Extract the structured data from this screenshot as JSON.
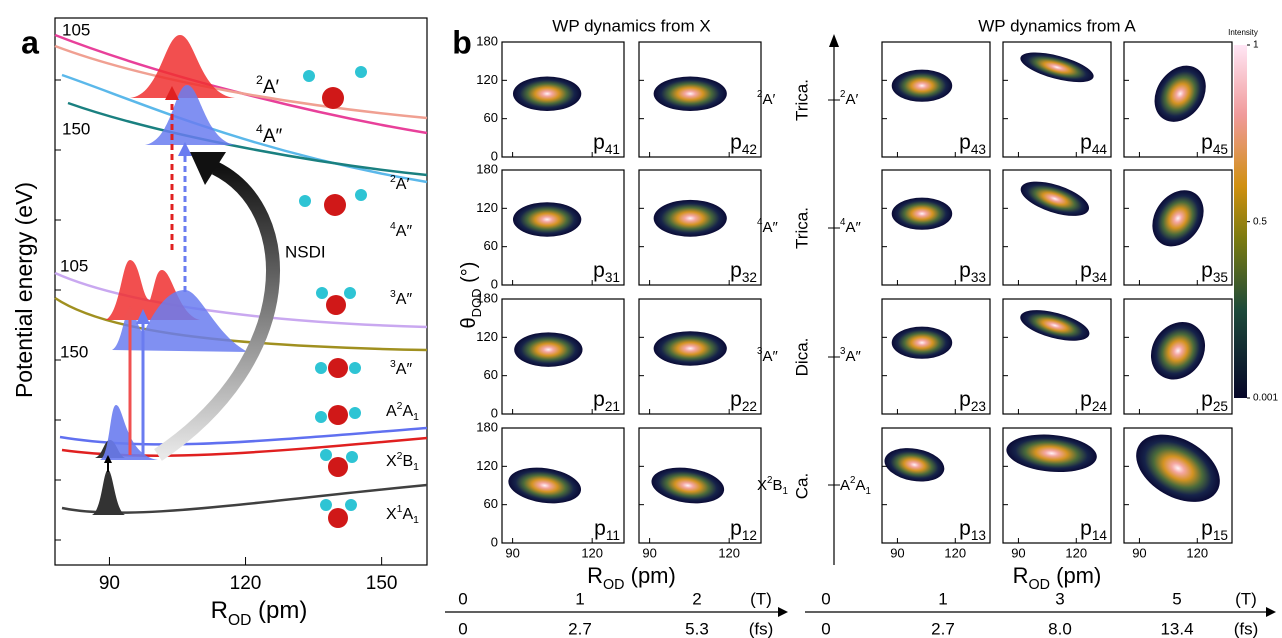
{
  "panel_a": {
    "label": "a",
    "y_label": "Potential energy (eV)",
    "x_label": [
      "R",
      {
        "sub": "OD"
      },
      " (pm)"
    ],
    "xlim": [
      78,
      160
    ],
    "xticks": [
      90,
      120,
      150
    ],
    "angle_labels": [
      "105",
      "150",
      "105",
      "150"
    ],
    "state_labels": [
      [
        {
          "sup": "2"
        },
        "A′"
      ],
      [
        {
          "sup": "4"
        },
        "A″"
      ],
      [
        {
          "sup": "2"
        },
        "A′"
      ],
      [
        {
          "sup": "4"
        },
        "A″"
      ],
      [
        {
          "sup": "3"
        },
        "A″"
      ],
      [
        {
          "sup": "3"
        },
        "A″"
      ],
      [
        "A",
        {
          "sup": "2"
        },
        "A",
        {
          "sub": "1"
        }
      ],
      [
        "X",
        {
          "sup": "2"
        },
        "B",
        {
          "sub": "1"
        }
      ],
      [
        "X",
        {
          "sup": "1"
        },
        "A",
        {
          "sub": "1"
        }
      ]
    ],
    "arrow_label": "NSDI"
  },
  "panel_b": {
    "label": "b",
    "y_label": [
      "θ",
      {
        "sub": "DOD"
      },
      " (°)"
    ],
    "ylim": [
      0,
      180
    ],
    "yticks": [
      0,
      60,
      120,
      180
    ],
    "colorbar": {
      "title": "Intensity",
      "clim": [
        0.001,
        1
      ],
      "ticks": [
        1,
        0.5,
        0.001
      ]
    },
    "left": {
      "title": "WP dynamics from X",
      "x_label": [
        "R",
        {
          "sub": "OD"
        },
        " (pm)"
      ],
      "xlim": [
        86,
        132
      ],
      "xticks": [
        90,
        120
      ],
      "state_labels": [
        [
          {
            "sup": "2"
          },
          "A′"
        ],
        [
          {
            "sup": "4"
          },
          "A″"
        ],
        [
          {
            "sup": "3"
          },
          "A″"
        ],
        [
          "X",
          {
            "sup": "2"
          },
          "B",
          {
            "sub": "1"
          }
        ]
      ],
      "panels": [
        [
          [
            "p",
            {
              "sub": "41"
            }
          ],
          [
            "p",
            {
              "sub": "42"
            }
          ]
        ],
        [
          [
            "p",
            {
              "sub": "31"
            }
          ],
          [
            "p",
            {
              "sub": "32"
            }
          ]
        ],
        [
          [
            "p",
            {
              "sub": "21"
            }
          ],
          [
            "p",
            {
              "sub": "22"
            }
          ]
        ],
        [
          [
            "p",
            {
              "sub": "11"
            }
          ],
          [
            "p",
            {
              "sub": "12"
            }
          ]
        ]
      ],
      "timeline": {
        "T": [
          0,
          1,
          2
        ],
        "T_unit": "(T)",
        "fs": [
          0,
          2.7,
          5.3
        ],
        "fs_unit": "(fs)"
      }
    },
    "right": {
      "title": "WP dynamics from A",
      "x_label": [
        "R",
        {
          "sub": "OD"
        },
        " (pm)"
      ],
      "xlim": [
        82,
        138
      ],
      "xticks": [
        90,
        120
      ],
      "groups": [
        "Trica.",
        "Trica.",
        "Dica.",
        "Ca."
      ],
      "state_labels": [
        [
          {
            "sup": "2"
          },
          "A′"
        ],
        [
          {
            "sup": "4"
          },
          "A″"
        ],
        [
          {
            "sup": "3"
          },
          "A″"
        ],
        [
          "A",
          {
            "sup": "2"
          },
          "A",
          {
            "sub": "1"
          }
        ]
      ],
      "panels": [
        [
          [
            "p",
            {
              "sub": "43"
            }
          ],
          [
            "p",
            {
              "sub": "44"
            }
          ],
          [
            "p",
            {
              "sub": "45"
            }
          ]
        ],
        [
          [
            "p",
            {
              "sub": "33"
            }
          ],
          [
            "p",
            {
              "sub": "34"
            }
          ],
          [
            "p",
            {
              "sub": "35"
            }
          ]
        ],
        [
          [
            "p",
            {
              "sub": "23"
            }
          ],
          [
            "p",
            {
              "sub": "24"
            }
          ],
          [
            "p",
            {
              "sub": "25"
            }
          ]
        ],
        [
          [
            "p",
            {
              "sub": "13"
            }
          ],
          [
            "p",
            {
              "sub": "14"
            }
          ],
          [
            "p",
            {
              "sub": "15"
            }
          ]
        ]
      ],
      "timeline": {
        "T": [
          0,
          1,
          3,
          5
        ],
        "T_unit": "(T)",
        "fs": [
          0,
          2.7,
          {
            "value": 8,
            "label": "8.0"
          },
          13.4
        ],
        "fs_unit": "(fs)"
      }
    }
  }
}
